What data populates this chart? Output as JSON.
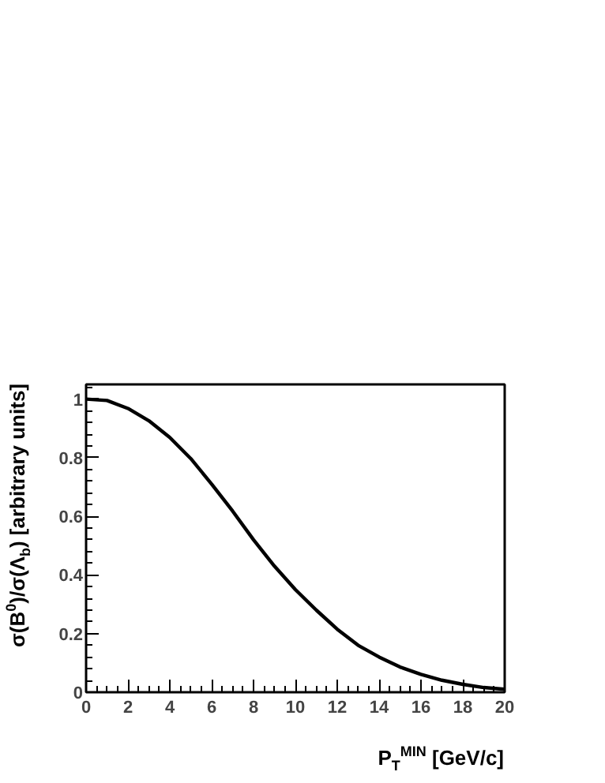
{
  "chart_data": {
    "type": "line",
    "xlabel": "P$_{T}$$^{MIN}$ [GeV/c]",
    "ylabel": "σ(B$^{0}$)/σ(Λ$_{b}$) [arbitrary units]",
    "x": [
      0,
      1,
      2,
      3,
      4,
      5,
      6,
      7,
      8,
      9,
      10,
      11,
      12,
      13,
      14,
      15,
      16,
      17,
      18,
      19,
      20
    ],
    "series": [
      {
        "color": "#000000",
        "values": [
          1.0,
          0.995,
          0.968,
          0.926,
          0.869,
          0.797,
          0.71,
          0.618,
          0.52,
          0.43,
          0.35,
          0.28,
          0.215,
          0.16,
          0.12,
          0.086,
          0.061,
          0.041,
          0.027,
          0.016,
          0.01
        ]
      }
    ],
    "xlim": [
      0,
      20
    ],
    "ylim": [
      0,
      1.05
    ],
    "xticks": [
      0,
      2,
      4,
      6,
      8,
      10,
      12,
      14,
      16,
      18,
      20
    ],
    "yticks": [
      0,
      0.2,
      0.4,
      0.6,
      0.8,
      1
    ],
    "grid": false,
    "marker": "none",
    "line_style": "solid"
  }
}
